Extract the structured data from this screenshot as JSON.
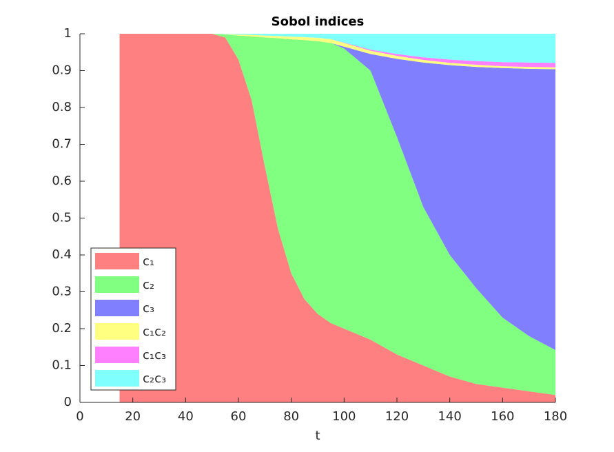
{
  "chart_data": {
    "type": "stacked-area",
    "title": "Sobol indices",
    "x_label": "t",
    "x": [
      15,
      20,
      30,
      40,
      50,
      55,
      60,
      65,
      70,
      75,
      80,
      85,
      90,
      95,
      100,
      110,
      120,
      130,
      140,
      150,
      160,
      170,
      180
    ],
    "series": [
      {
        "name": "c₁",
        "color": "#ff8080",
        "values": [
          1,
          1,
          1,
          1,
          1,
          0.99,
          0.93,
          0.82,
          0.64,
          0.47,
          0.35,
          0.28,
          0.24,
          0.215,
          0.2,
          0.17,
          0.13,
          0.1,
          0.07,
          0.05,
          0.04,
          0.03,
          0.02
        ]
      },
      {
        "name": "c₂",
        "color": "#80ff80",
        "values": [
          0,
          0,
          0,
          0,
          0,
          0.008,
          0.065,
          0.173,
          0.35,
          0.518,
          0.635,
          0.703,
          0.74,
          0.76,
          0.76,
          0.73,
          0.59,
          0.43,
          0.33,
          0.26,
          0.19,
          0.15,
          0.122
        ]
      },
      {
        "name": "c₃",
        "color": "#8080ff",
        "values": [
          0,
          0,
          0,
          0,
          0,
          0,
          0,
          0,
          0,
          0,
          0,
          0,
          0,
          0,
          0.005,
          0.045,
          0.212,
          0.392,
          0.515,
          0.6,
          0.677,
          0.725,
          0.762
        ]
      },
      {
        "name": "c₁c₂",
        "color": "#ffff80",
        "values": [
          0,
          0,
          0,
          0,
          0,
          0.001,
          0.003,
          0.004,
          0.005,
          0.006,
          0.007,
          0.008,
          0.009,
          0.01,
          0.01,
          0.009,
          0.008,
          0.007,
          0.006,
          0.006,
          0.005,
          0.005,
          0.005
        ]
      },
      {
        "name": "c₁c₃",
        "color": "#ff80ff",
        "values": [
          0,
          0,
          0,
          0,
          0,
          0,
          0,
          0,
          0,
          0,
          0,
          0,
          0,
          0,
          0.001,
          0.003,
          0.005,
          0.007,
          0.009,
          0.01,
          0.011,
          0.012,
          0.012
        ]
      },
      {
        "name": "c₂c₃",
        "color": "#80ffff",
        "values": [
          0,
          0,
          0,
          0,
          0,
          0.001,
          0.002,
          0.003,
          0.005,
          0.006,
          0.008,
          0.009,
          0.011,
          0.015,
          0.024,
          0.043,
          0.055,
          0.064,
          0.07,
          0.074,
          0.077,
          0.078,
          0.079
        ]
      }
    ],
    "xlim": [
      0,
      180
    ],
    "xticks": [
      0,
      20,
      40,
      60,
      80,
      100,
      120,
      140,
      160,
      180
    ],
    "ylim": [
      0,
      1
    ],
    "yticks": [
      0,
      0.1,
      0.2,
      0.3,
      0.4,
      0.5,
      0.6,
      0.7,
      0.8,
      0.9,
      1
    ],
    "grid": false,
    "legend_position": "lower-left"
  }
}
